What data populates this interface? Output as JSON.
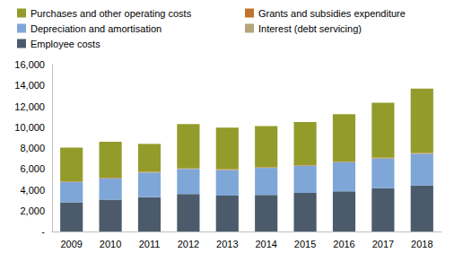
{
  "chart_data": {
    "type": "bar",
    "stacked": true,
    "grid": false,
    "categories": [
      "2009",
      "2010",
      "2011",
      "2012",
      "2013",
      "2014",
      "2015",
      "2016",
      "2017",
      "2018"
    ],
    "series": [
      {
        "name": "Employee costs",
        "color": "#4b5b6b",
        "values": [
          2800,
          3050,
          3300,
          3600,
          3450,
          3500,
          3700,
          3850,
          4150,
          4400
        ]
      },
      {
        "name": "Depreciation and amortisation",
        "color": "#7ea7d8",
        "values": [
          1950,
          2050,
          2350,
          2400,
          2450,
          2600,
          2600,
          2800,
          2850,
          3050
        ]
      },
      {
        "name": "Interest (debt servicing)",
        "color": "#b3a57c",
        "values": [
          20,
          20,
          20,
          20,
          20,
          20,
          20,
          20,
          20,
          20
        ]
      },
      {
        "name": "Grants and subsidies expenditure",
        "color": "#c0732b",
        "values": [
          50,
          50,
          50,
          50,
          50,
          50,
          50,
          50,
          50,
          50
        ]
      },
      {
        "name": "Purchases and other operating costs",
        "color": "#939c2b",
        "values": [
          3230,
          3430,
          2680,
          4230,
          3980,
          3930,
          4130,
          4530,
          5280,
          6180
        ]
      }
    ],
    "ylim": [
      0,
      16000
    ],
    "yticks": [
      {
        "value": 0,
        "label": "-"
      },
      {
        "value": 2000,
        "label": "2,000"
      },
      {
        "value": 4000,
        "label": "4,000"
      },
      {
        "value": 6000,
        "label": "6,000"
      },
      {
        "value": 8000,
        "label": "8,000"
      },
      {
        "value": 10000,
        "label": "10,000"
      },
      {
        "value": 12000,
        "label": "12,000"
      },
      {
        "value": 14000,
        "label": "14,000"
      },
      {
        "value": 16000,
        "label": "16,000"
      }
    ]
  }
}
